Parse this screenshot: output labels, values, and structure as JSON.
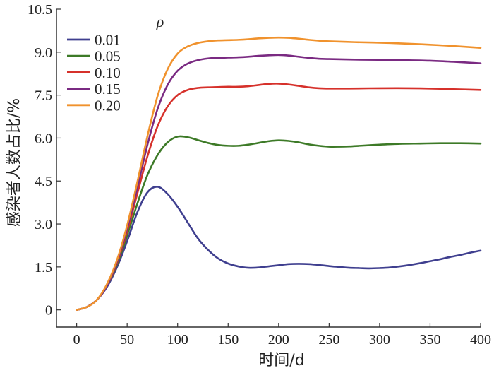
{
  "chart_data": {
    "type": "line",
    "xlabel": "时间/d",
    "ylabel": "感染者人数占比/%",
    "xlim": [
      -20,
      400
    ],
    "ylim": [
      -0.6,
      10.5
    ],
    "xticks": [
      0,
      50,
      100,
      150,
      200,
      250,
      300,
      350,
      400
    ],
    "xtick_labels": [
      "0",
      "50",
      "100",
      "150",
      "200",
      "250",
      "300",
      "350",
      "400"
    ],
    "yticks": [
      0,
      1.5,
      3.0,
      4.5,
      6.0,
      7.5,
      9.0,
      10.5
    ],
    "ytick_labels": [
      "0",
      "1.5",
      "3.0",
      "4.5",
      "6.0",
      "7.5",
      "9.0",
      "10.5"
    ],
    "grid": false,
    "legend": {
      "title": "ρ",
      "position": "top-left"
    },
    "series": [
      {
        "name": "0.01",
        "color": "#3f3f8f",
        "points": [
          [
            0,
            0
          ],
          [
            10,
            0.1
          ],
          [
            20,
            0.35
          ],
          [
            30,
            0.8
          ],
          [
            40,
            1.5
          ],
          [
            50,
            2.4
          ],
          [
            60,
            3.4
          ],
          [
            70,
            4.1
          ],
          [
            80,
            4.3
          ],
          [
            90,
            4.05
          ],
          [
            100,
            3.6
          ],
          [
            110,
            3.05
          ],
          [
            120,
            2.5
          ],
          [
            130,
            2.1
          ],
          [
            140,
            1.8
          ],
          [
            150,
            1.62
          ],
          [
            160,
            1.52
          ],
          [
            170,
            1.47
          ],
          [
            180,
            1.48
          ],
          [
            190,
            1.52
          ],
          [
            200,
            1.56
          ],
          [
            210,
            1.6
          ],
          [
            220,
            1.61
          ],
          [
            230,
            1.6
          ],
          [
            240,
            1.57
          ],
          [
            250,
            1.53
          ],
          [
            260,
            1.5
          ],
          [
            270,
            1.47
          ],
          [
            280,
            1.46
          ],
          [
            290,
            1.45
          ],
          [
            300,
            1.46
          ],
          [
            310,
            1.48
          ],
          [
            320,
            1.52
          ],
          [
            330,
            1.57
          ],
          [
            340,
            1.63
          ],
          [
            350,
            1.7
          ],
          [
            360,
            1.77
          ],
          [
            370,
            1.85
          ],
          [
            380,
            1.92
          ],
          [
            390,
            2.0
          ],
          [
            400,
            2.07
          ]
        ]
      },
      {
        "name": "0.05",
        "color": "#3d7a27",
        "points": [
          [
            0,
            0
          ],
          [
            10,
            0.1
          ],
          [
            20,
            0.35
          ],
          [
            30,
            0.85
          ],
          [
            40,
            1.6
          ],
          [
            50,
            2.6
          ],
          [
            60,
            3.7
          ],
          [
            70,
            4.7
          ],
          [
            80,
            5.4
          ],
          [
            90,
            5.85
          ],
          [
            100,
            6.05
          ],
          [
            110,
            6.03
          ],
          [
            120,
            5.93
          ],
          [
            130,
            5.83
          ],
          [
            140,
            5.76
          ],
          [
            150,
            5.73
          ],
          [
            160,
            5.73
          ],
          [
            170,
            5.77
          ],
          [
            180,
            5.83
          ],
          [
            190,
            5.89
          ],
          [
            200,
            5.92
          ],
          [
            210,
            5.9
          ],
          [
            220,
            5.85
          ],
          [
            230,
            5.78
          ],
          [
            240,
            5.73
          ],
          [
            250,
            5.7
          ],
          [
            260,
            5.7
          ],
          [
            270,
            5.71
          ],
          [
            280,
            5.73
          ],
          [
            290,
            5.75
          ],
          [
            300,
            5.77
          ],
          [
            320,
            5.8
          ],
          [
            340,
            5.81
          ],
          [
            360,
            5.82
          ],
          [
            380,
            5.82
          ],
          [
            400,
            5.81
          ]
        ]
      },
      {
        "name": "0.10",
        "color": "#d6312b",
        "points": [
          [
            0,
            0
          ],
          [
            10,
            0.1
          ],
          [
            20,
            0.35
          ],
          [
            30,
            0.85
          ],
          [
            40,
            1.65
          ],
          [
            50,
            2.75
          ],
          [
            60,
            4.05
          ],
          [
            70,
            5.35
          ],
          [
            80,
            6.4
          ],
          [
            90,
            7.1
          ],
          [
            100,
            7.5
          ],
          [
            110,
            7.68
          ],
          [
            120,
            7.75
          ],
          [
            130,
            7.77
          ],
          [
            140,
            7.78
          ],
          [
            150,
            7.79
          ],
          [
            160,
            7.79
          ],
          [
            170,
            7.81
          ],
          [
            180,
            7.85
          ],
          [
            190,
            7.89
          ],
          [
            200,
            7.9
          ],
          [
            210,
            7.87
          ],
          [
            220,
            7.82
          ],
          [
            230,
            7.77
          ],
          [
            240,
            7.74
          ],
          [
            250,
            7.73
          ],
          [
            270,
            7.73
          ],
          [
            300,
            7.74
          ],
          [
            330,
            7.74
          ],
          [
            360,
            7.72
          ],
          [
            380,
            7.7
          ],
          [
            400,
            7.68
          ]
        ]
      },
      {
        "name": "0.15",
        "color": "#7a2a82",
        "points": [
          [
            0,
            0
          ],
          [
            10,
            0.1
          ],
          [
            20,
            0.35
          ],
          [
            30,
            0.85
          ],
          [
            40,
            1.7
          ],
          [
            50,
            2.85
          ],
          [
            60,
            4.25
          ],
          [
            70,
            5.75
          ],
          [
            80,
            7.0
          ],
          [
            90,
            7.85
          ],
          [
            100,
            8.35
          ],
          [
            110,
            8.6
          ],
          [
            120,
            8.72
          ],
          [
            130,
            8.78
          ],
          [
            140,
            8.8
          ],
          [
            150,
            8.81
          ],
          [
            160,
            8.82
          ],
          [
            170,
            8.84
          ],
          [
            180,
            8.87
          ],
          [
            190,
            8.89
          ],
          [
            200,
            8.9
          ],
          [
            210,
            8.88
          ],
          [
            220,
            8.84
          ],
          [
            230,
            8.8
          ],
          [
            240,
            8.77
          ],
          [
            250,
            8.76
          ],
          [
            275,
            8.74
          ],
          [
            300,
            8.73
          ],
          [
            325,
            8.72
          ],
          [
            350,
            8.7
          ],
          [
            375,
            8.66
          ],
          [
            400,
            8.61
          ]
        ]
      },
      {
        "name": "0.20",
        "color": "#f0922d",
        "points": [
          [
            0,
            0
          ],
          [
            10,
            0.1
          ],
          [
            20,
            0.35
          ],
          [
            30,
            0.9
          ],
          [
            40,
            1.75
          ],
          [
            50,
            2.95
          ],
          [
            60,
            4.45
          ],
          [
            70,
            6.05
          ],
          [
            80,
            7.45
          ],
          [
            90,
            8.4
          ],
          [
            100,
            8.95
          ],
          [
            110,
            9.2
          ],
          [
            120,
            9.32
          ],
          [
            130,
            9.38
          ],
          [
            140,
            9.41
          ],
          [
            150,
            9.42
          ],
          [
            160,
            9.43
          ],
          [
            170,
            9.45
          ],
          [
            180,
            9.48
          ],
          [
            190,
            9.5
          ],
          [
            200,
            9.51
          ],
          [
            210,
            9.5
          ],
          [
            220,
            9.47
          ],
          [
            230,
            9.43
          ],
          [
            240,
            9.4
          ],
          [
            250,
            9.38
          ],
          [
            275,
            9.35
          ],
          [
            300,
            9.33
          ],
          [
            325,
            9.3
          ],
          [
            350,
            9.26
          ],
          [
            375,
            9.21
          ],
          [
            400,
            9.15
          ]
        ]
      }
    ]
  }
}
